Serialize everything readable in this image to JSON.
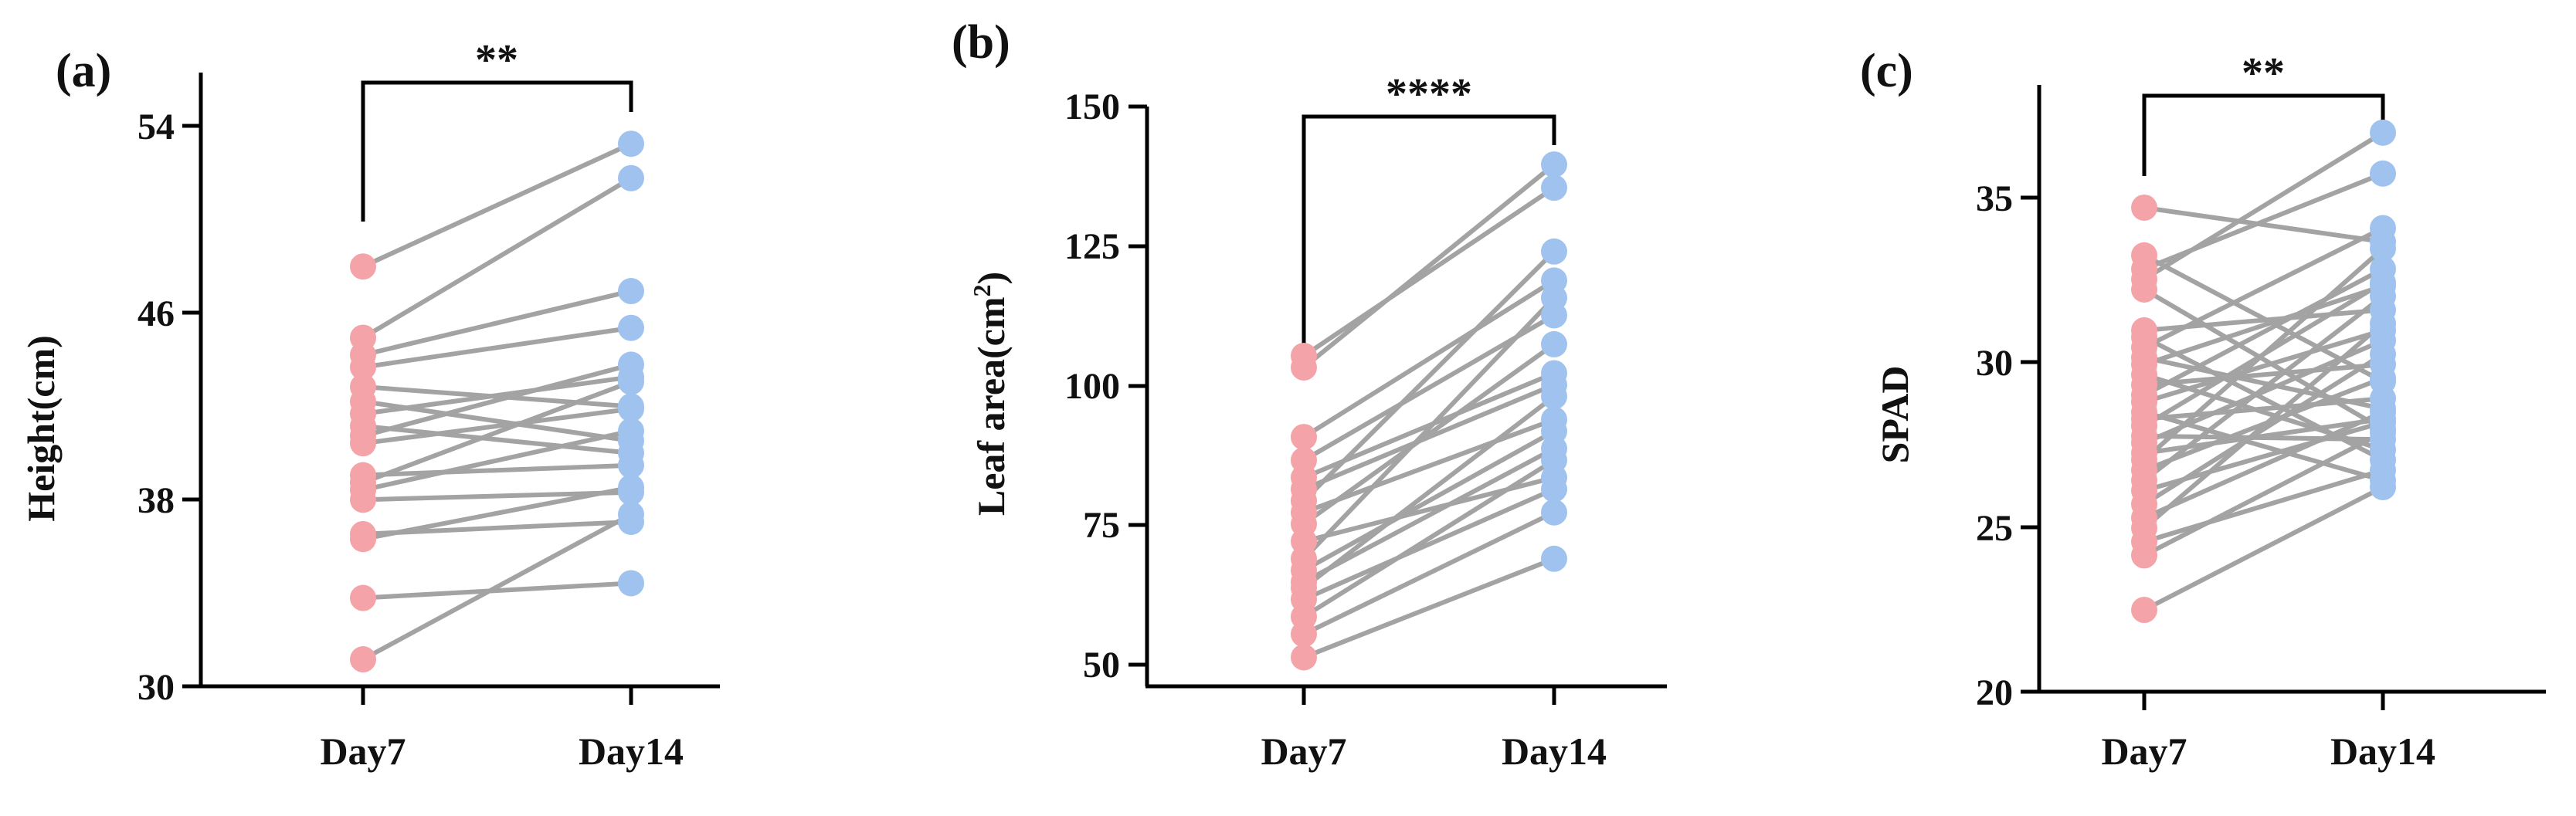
{
  "colors": {
    "day7": "#f4a3a8",
    "day14": "#9fc3ee",
    "line": "#a3a3a3",
    "axis": "#000000"
  },
  "chart_data": [
    {
      "id": "a",
      "type": "scatter",
      "panel_label": "(a)",
      "title": "",
      "xlabel": "",
      "ylabel": "Height(cm)",
      "categories": [
        "Day7",
        "Day14"
      ],
      "ylim": [
        30,
        55
      ],
      "yticks": [
        30,
        38,
        46,
        54
      ],
      "significance": "**",
      "series": [
        {
          "name": "Day7",
          "values": [
            47.1,
            44.2,
            43.5,
            43.0,
            42.2,
            41.6,
            41.1,
            40.6,
            40.2,
            39.9,
            38.6,
            38.3,
            38.0,
            37.6,
            36.2,
            36.0,
            33.6,
            31.1
          ]
        },
        {
          "name": "Day14",
          "values": [
            52.1,
            50.7,
            46.1,
            44.6,
            41.4,
            40.0,
            42.6,
            39.5,
            43.1,
            41.3,
            39.0,
            42.4,
            40.4,
            37.9,
            36.7,
            38.1,
            34.2,
            37.0
          ]
        }
      ]
    },
    {
      "id": "b",
      "type": "scatter",
      "panel_label": "(b)",
      "title": "",
      "xlabel": "",
      "ylabel": "Leaf area(cm²)",
      "categories": [
        "Day7",
        "Day14"
      ],
      "ylim": [
        46,
        150
      ],
      "yticks": [
        50,
        75,
        100,
        125,
        150
      ],
      "significance": "****",
      "series": [
        {
          "name": "Day7",
          "values": [
            103,
            101,
            89,
            85,
            82,
            80,
            78,
            76,
            74,
            71,
            68,
            66,
            64,
            63,
            61,
            58,
            55,
            51
          ]
        },
        {
          "name": "Day14",
          "values": [
            132,
            136,
            116,
            110,
            100,
            98,
            121,
            92,
            105,
            82,
            113,
            90,
            87,
            96,
            80,
            85,
            76,
            68
          ]
        }
      ]
    },
    {
      "id": "c",
      "type": "scatter",
      "panel_label": "(c)",
      "title": "",
      "xlabel": "",
      "ylabel": "SPAD",
      "categories": [
        "Day7",
        "Day14"
      ],
      "ylim": [
        20,
        37.8
      ],
      "yticks": [
        20,
        25,
        30,
        35
      ],
      "significance": "**",
      "series": [
        {
          "name": "Day7",
          "values": [
            34.2,
            32.8,
            32.4,
            32.1,
            31.8,
            30.6,
            30.4,
            30.1,
            29.8,
            29.6,
            29.3,
            29.0,
            28.7,
            28.5,
            28.2,
            28.0,
            27.8,
            27.5,
            27.3,
            27.0,
            26.8,
            26.5,
            26.2,
            25.9,
            25.5,
            25.1,
            24.8,
            24.4,
            24.0,
            22.4
          ]
        },
        {
          "name": "Day14",
          "values": [
            33.2,
            29.1,
            35.2,
            36.4,
            27.7,
            31.2,
            26.8,
            33.6,
            28.3,
            31.9,
            27.1,
            29.6,
            32.4,
            30.6,
            26.2,
            28.6,
            32.0,
            27.4,
            30.3,
            28.0,
            33.0,
            29.2,
            31.6,
            27.9,
            29.9,
            28.2,
            30.8,
            26.5,
            27.6,
            26.0
          ]
        }
      ]
    }
  ]
}
